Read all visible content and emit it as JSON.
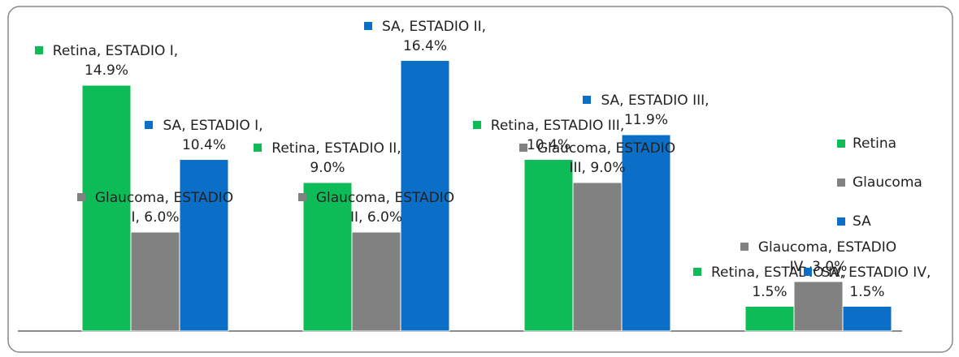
{
  "chart_data": {
    "type": "bar",
    "series": [
      {
        "name": "Retina",
        "color": "#0dbb57",
        "values": [
          14.9,
          9.0,
          10.4,
          1.5
        ],
        "value_labels": [
          "Retina, ESTADIO I, 14.9%",
          "Retina, ESTADIO II, 9.0%",
          "Retina, ESTADIO III, 10.4%",
          "Retina, ESTADIO IV, 1.5%"
        ]
      },
      {
        "name": "Glaucoma",
        "color": "#818181",
        "values": [
          6.0,
          6.0,
          9.0,
          3.0
        ],
        "value_labels": [
          "Glaucoma, ESTADIO I, 6.0%",
          "Glaucoma, ESTADIO II, 6.0%",
          "Glaucoma, ESTADIO III, 9.0%",
          "Glaucoma, ESTADIO IV, 3.0%"
        ]
      },
      {
        "name": "SA",
        "color": "#0b6fc8",
        "values": [
          10.4,
          16.4,
          11.9,
          1.5
        ],
        "value_labels": [
          "SA, ESTADIO I, 10.4%",
          "SA, ESTADIO II, 16.4%",
          "SA, ESTADIO III, 11.9%",
          "SA, ESTADIO IV, 1.5%"
        ]
      }
    ],
    "ylim": [
      0,
      18
    ],
    "legend": "right"
  }
}
